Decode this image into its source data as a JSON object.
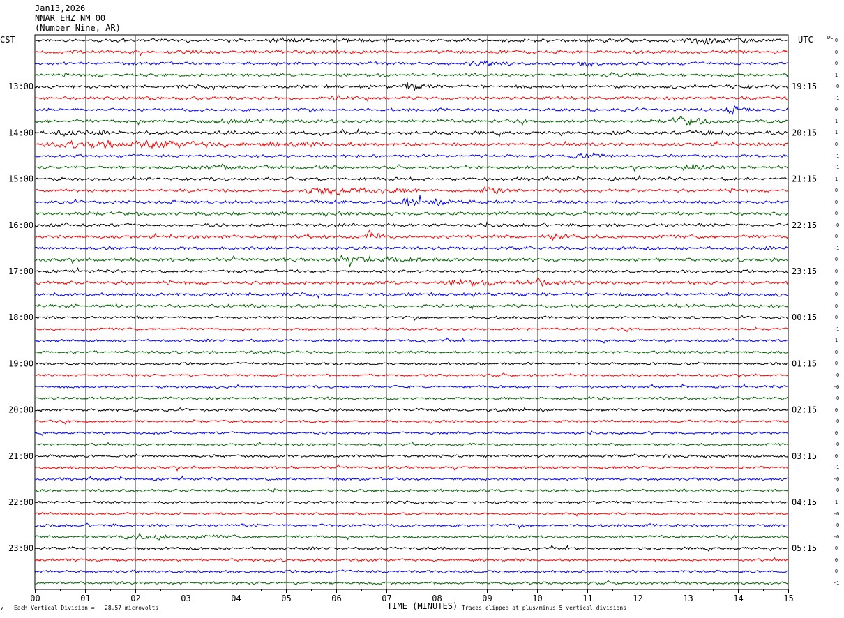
{
  "header": {
    "date": "Jan13,2026",
    "station": "NNAR EHZ NM 00",
    "location": "(Number Nine, AR)"
  },
  "left_timezone": "CST",
  "right_timezone": "UTC",
  "dc_label": "DC",
  "footer": {
    "scale_note": "Each Vertical Division =   28.57 microvolts",
    "clip_note": "Traces clipped at plus/minus 5 vertical divisions",
    "corner_mark": "∧"
  },
  "chart_data": {
    "type": "line",
    "xlabel": "TIME (MINUTES)",
    "x_ticks": [
      "00",
      "01",
      "02",
      "03",
      "04",
      "05",
      "06",
      "07",
      "08",
      "09",
      "10",
      "11",
      "12",
      "13",
      "14",
      "15"
    ],
    "xlim": [
      0,
      15
    ],
    "rows_per_hour": 4,
    "minutes_per_row": 15,
    "row_count": 48,
    "trace_colors": [
      "#000000",
      "#ff0000",
      "#0000ff",
      "#006400"
    ],
    "left_hour_labels": [
      "13:00",
      "14:00",
      "15:00",
      "16:00",
      "17:00",
      "18:00",
      "19:00",
      "20:00",
      "21:00",
      "22:00",
      "23:00"
    ],
    "right_hour_labels": [
      "19:15",
      "20:15",
      "21:15",
      "22:15",
      "23:15",
      "00:15",
      "01:15",
      "02:15",
      "03:15",
      "04:15",
      "05:15"
    ],
    "first_labeled_row": 4,
    "dc_offsets": [
      "0",
      "0",
      "0",
      "1",
      "-0",
      "-1",
      "0",
      "1",
      "1",
      "0",
      "-1",
      "-1",
      "1",
      "0",
      "0",
      "0",
      "-0",
      "0",
      "-1",
      "0",
      "0",
      "0",
      "0",
      "0",
      "0",
      "-1",
      "1",
      "0",
      "0",
      "-0",
      "-0",
      "-0",
      "0",
      "-0",
      "0",
      "-0",
      "0",
      "-1",
      "-0",
      "-0",
      "1",
      "-0",
      "-0",
      "-0",
      "0",
      "0",
      "0",
      "-1"
    ],
    "events": [
      {
        "row": 0,
        "start_min": 12.9,
        "end_min": 14.2,
        "amplitude": 3.5
      },
      {
        "row": 0,
        "start_min": 4.5,
        "end_min": 6.5,
        "amplitude": 1.2
      },
      {
        "row": 2,
        "start_min": 8.6,
        "end_min": 9.6,
        "amplitude": 1.6
      },
      {
        "row": 2,
        "start_min": 10.8,
        "end_min": 11.6,
        "amplitude": 1.4
      },
      {
        "row": 3,
        "start_min": 11.4,
        "end_min": 12.4,
        "amplitude": 1.8
      },
      {
        "row": 4,
        "start_min": 7.3,
        "end_min": 8.0,
        "amplitude": 2.6
      },
      {
        "row": 4,
        "start_min": 13.7,
        "end_min": 14.3,
        "amplitude": 1.5
      },
      {
        "row": 5,
        "start_min": 5.8,
        "end_min": 6.6,
        "amplitude": 1.5
      },
      {
        "row": 6,
        "start_min": 13.7,
        "end_min": 14.3,
        "amplitude": 3.2
      },
      {
        "row": 7,
        "start_min": 12.6,
        "end_min": 13.9,
        "amplitude": 2.8
      },
      {
        "row": 7,
        "start_min": 3.5,
        "end_min": 5.0,
        "amplitude": 1.6
      },
      {
        "row": 8,
        "start_min": 0.3,
        "end_min": 1.5,
        "amplitude": 2.0
      },
      {
        "row": 8,
        "start_min": 13.0,
        "end_min": 14.8,
        "amplitude": 1.5
      },
      {
        "row": 9,
        "start_min": 0.0,
        "end_min": 7.5,
        "amplitude": 2.2
      },
      {
        "row": 10,
        "start_min": 10.5,
        "end_min": 11.8,
        "amplitude": 1.4
      },
      {
        "row": 11,
        "start_min": 3.0,
        "end_min": 6.0,
        "amplitude": 1.8
      },
      {
        "row": 11,
        "start_min": 12.8,
        "end_min": 13.8,
        "amplitude": 2.2
      },
      {
        "row": 13,
        "start_min": 5.2,
        "end_min": 7.8,
        "amplitude": 3.6
      },
      {
        "row": 13,
        "start_min": 8.8,
        "end_min": 10.0,
        "amplitude": 1.6
      },
      {
        "row": 14,
        "start_min": 7.2,
        "end_min": 9.2,
        "amplitude": 2.4
      },
      {
        "row": 17,
        "start_min": 6.6,
        "end_min": 7.0,
        "amplitude": 4.2
      },
      {
        "row": 17,
        "start_min": 10.2,
        "end_min": 11.0,
        "amplitude": 1.8
      },
      {
        "row": 19,
        "start_min": 5.8,
        "end_min": 8.0,
        "amplitude": 2.4
      },
      {
        "row": 21,
        "start_min": 8.0,
        "end_min": 10.8,
        "amplitude": 1.4
      },
      {
        "row": 21,
        "start_min": 9.8,
        "end_min": 10.6,
        "amplitude": 3.0
      },
      {
        "row": 43,
        "start_min": 1.6,
        "end_min": 4.0,
        "amplitude": 1.8
      }
    ]
  }
}
